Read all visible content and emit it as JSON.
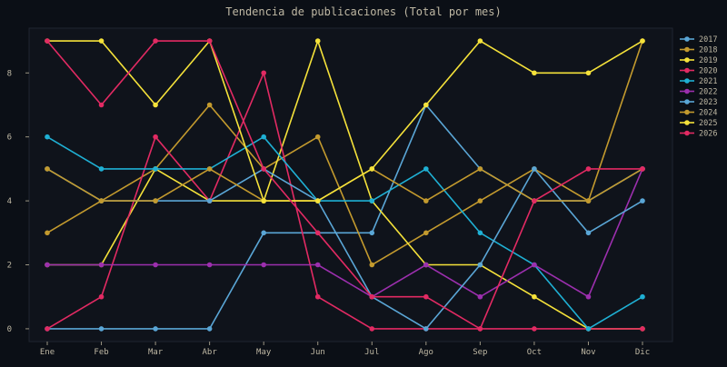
{
  "chart_data": {
    "type": "line",
    "title": "Tendencia de publicaciones (Total por mes)",
    "categories": [
      "Ene",
      "Feb",
      "Mar",
      "Abr",
      "May",
      "Jun",
      "Jul",
      "Ago",
      "Sep",
      "Oct",
      "Nov",
      "Dic"
    ],
    "ylim": [
      -0.4,
      9.4
    ],
    "yticks": [
      0,
      2,
      4,
      6,
      8
    ],
    "grid": false,
    "legend_position": "right-top",
    "series": [
      {
        "name": "2017",
        "color": "#5aa6d6",
        "values": [
          0,
          0,
          0,
          0,
          3,
          3,
          3,
          7,
          5,
          4,
          4,
          5
        ]
      },
      {
        "name": "2018",
        "color": "#c39a2e",
        "values": [
          3,
          4,
          5,
          7,
          5,
          6,
          2,
          3,
          4,
          5,
          4,
          5
        ]
      },
      {
        "name": "2019",
        "color": "#f5e23a",
        "values": [
          2,
          2,
          5,
          4,
          4,
          9,
          4,
          2,
          2,
          1,
          0,
          0
        ]
      },
      {
        "name": "2020",
        "color": "#e22a63",
        "values": [
          0,
          1,
          6,
          4,
          8,
          1,
          0,
          0,
          0,
          0,
          0,
          0
        ]
      },
      {
        "name": "2021",
        "color": "#1fb0d4",
        "values": [
          6,
          5,
          5,
          5,
          6,
          4,
          4,
          5,
          3,
          2,
          0,
          1
        ]
      },
      {
        "name": "2022",
        "color": "#9c2fae",
        "values": [
          2,
          2,
          2,
          2,
          2,
          2,
          1,
          2,
          1,
          2,
          1,
          5
        ]
      },
      {
        "name": "2023",
        "color": "#5aa6d6",
        "values": [
          5,
          4,
          4,
          4,
          5,
          4,
          1,
          0,
          2,
          5,
          3,
          4
        ]
      },
      {
        "name": "2024",
        "color": "#c39a2e",
        "values": [
          5,
          4,
          4,
          5,
          4,
          4,
          5,
          4,
          5,
          4,
          4,
          9
        ]
      },
      {
        "name": "2025",
        "color": "#f5e23a",
        "values": [
          9,
          9,
          7,
          9,
          4,
          4,
          5,
          7,
          9,
          8,
          8,
          9
        ]
      },
      {
        "name": "2026",
        "color": "#e22a63",
        "values": [
          9,
          7,
          9,
          9,
          5,
          3,
          1,
          1,
          0,
          4,
          5,
          5
        ]
      }
    ]
  }
}
